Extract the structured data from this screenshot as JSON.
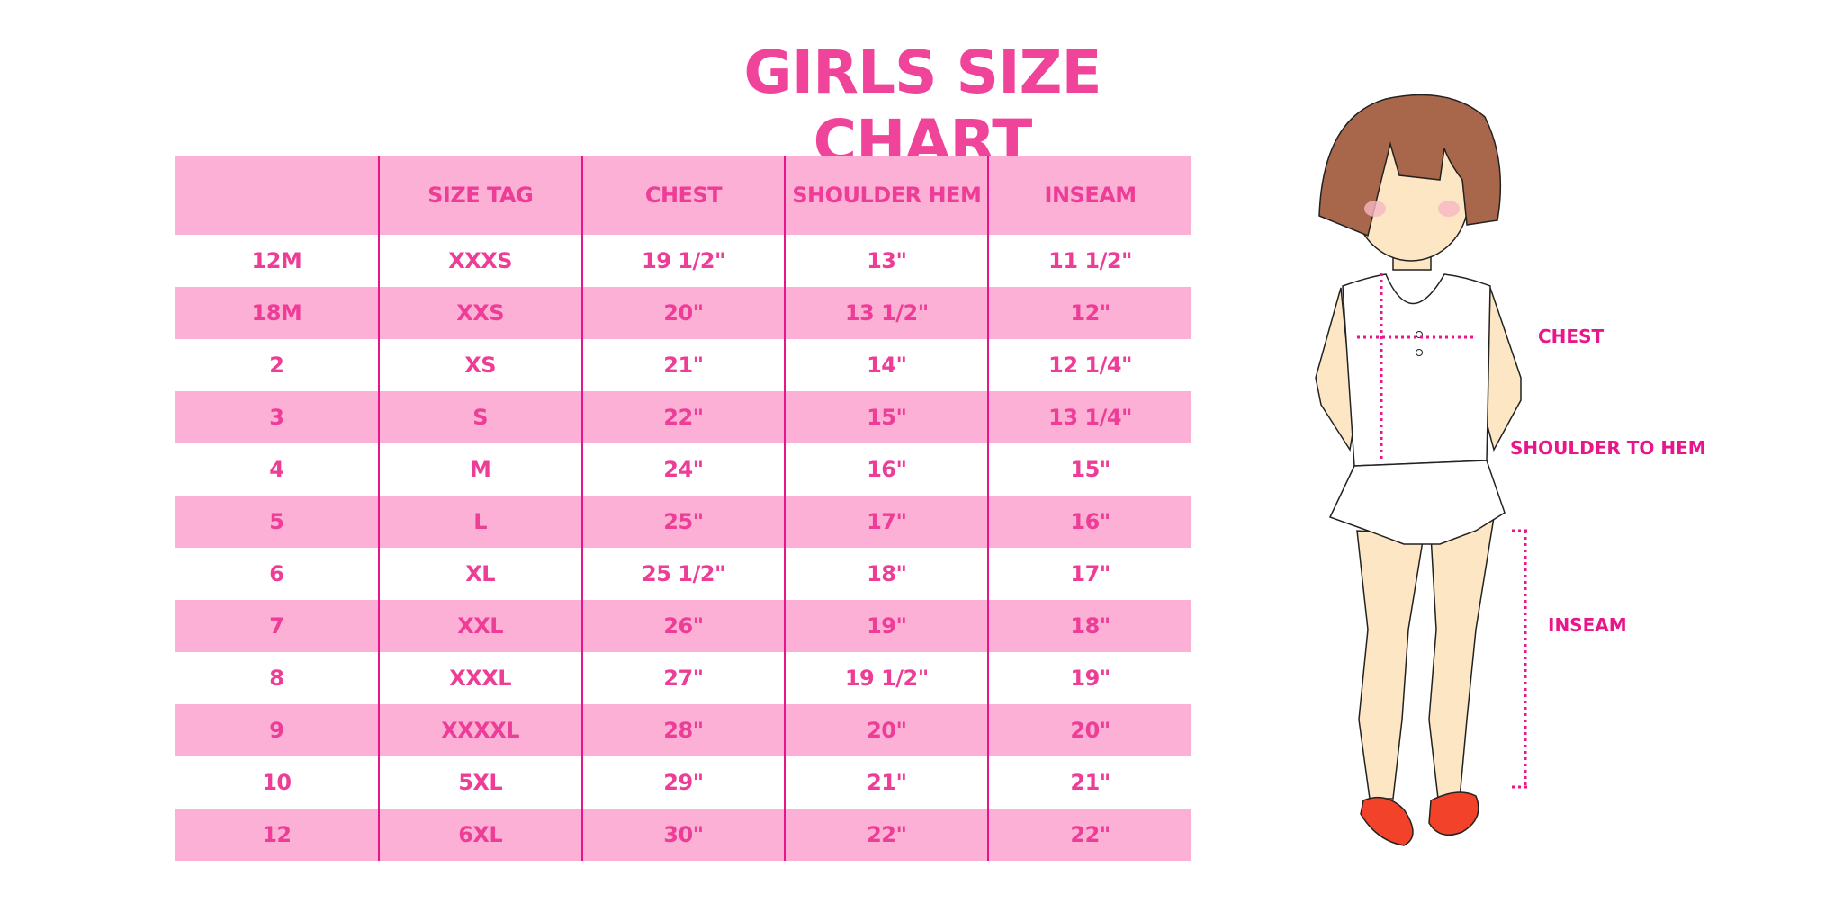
{
  "title": "GIRLS SIZE CHART",
  "table": {
    "headers": [
      "",
      "SIZE TAG",
      "CHEST",
      "SHOULDER HEM",
      "INSEAM"
    ],
    "rows": [
      [
        "12M",
        "XXXS",
        "19 1/2\"",
        "13\"",
        "11 1/2\""
      ],
      [
        "18M",
        "XXS",
        "20\"",
        "13 1/2\"",
        "12\""
      ],
      [
        "2",
        "XS",
        "21\"",
        "14\"",
        "12 1/4\""
      ],
      [
        "3",
        "S",
        "22\"",
        "15\"",
        "13 1/4\""
      ],
      [
        "4",
        "M",
        "24\"",
        "16\"",
        "15\""
      ],
      [
        "5",
        "L",
        "25\"",
        "17\"",
        "16\""
      ],
      [
        "6",
        "XL",
        "25 1/2\"",
        "18\"",
        "17\""
      ],
      [
        "7",
        "XXL",
        "26\"",
        "19\"",
        "18\""
      ],
      [
        "8",
        "XXXL",
        "27\"",
        "19 1/2\"",
        "19\""
      ],
      [
        "9",
        "XXXXL",
        "28\"",
        "20\"",
        "20\""
      ],
      [
        "10",
        "5XL",
        "29\"",
        "21\"",
        "21\""
      ],
      [
        "12",
        "6XL",
        "30\"",
        "22\"",
        "22\""
      ]
    ]
  },
  "figure": {
    "labels": {
      "chest": "CHEST",
      "shoulder_to_hem": "SHOULDER TO HEM",
      "inseam": "INSEAM"
    }
  },
  "colors": {
    "accent": "#ee3d96",
    "row_pink": "#fcb0d5",
    "divider": "#e6158a"
  }
}
